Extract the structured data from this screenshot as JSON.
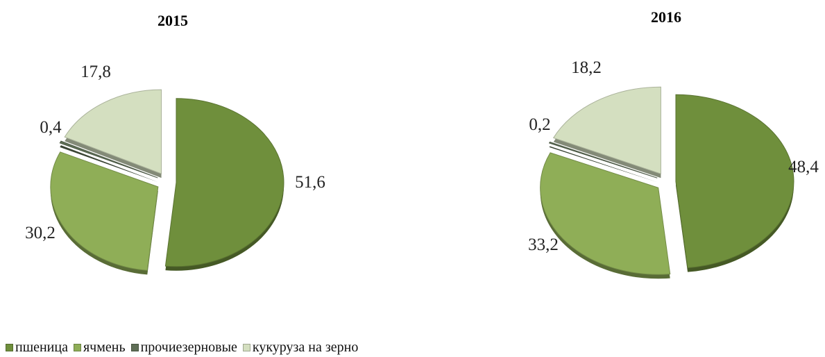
{
  "chart_data": [
    {
      "type": "pie",
      "title": "2015",
      "categories": [
        "пшеница",
        "ячмень",
        "прочие зерновые",
        "кукуруза на зерно"
      ],
      "values": [
        51.6,
        30.2,
        0.4,
        17.8
      ],
      "labels": [
        "51,6",
        "30,2",
        "0,4",
        "17,8"
      ]
    },
    {
      "type": "pie",
      "title": "2016",
      "categories": [
        "пшеница",
        "ячмень",
        "прочие зерновые",
        "кукуруза на зерно"
      ],
      "values": [
        48.4,
        33.2,
        0.2,
        18.2
      ],
      "labels": [
        "48,4",
        "33,2",
        "0,2",
        "18,2"
      ]
    }
  ],
  "legend": {
    "position": "bottom-left",
    "items": [
      {
        "label": "пшеница",
        "color": "#6f8f3c"
      },
      {
        "label": "ячмень",
        "color": "#8fae57"
      },
      {
        "label": "прочиезерновые",
        "color": "#5f6f56"
      },
      {
        "label": "кукуруза на зерно",
        "color": "#d4dfc0"
      }
    ]
  },
  "colors": [
    "#6f8f3c",
    "#8fae57",
    "#5f6f56",
    "#d4dfc0"
  ]
}
